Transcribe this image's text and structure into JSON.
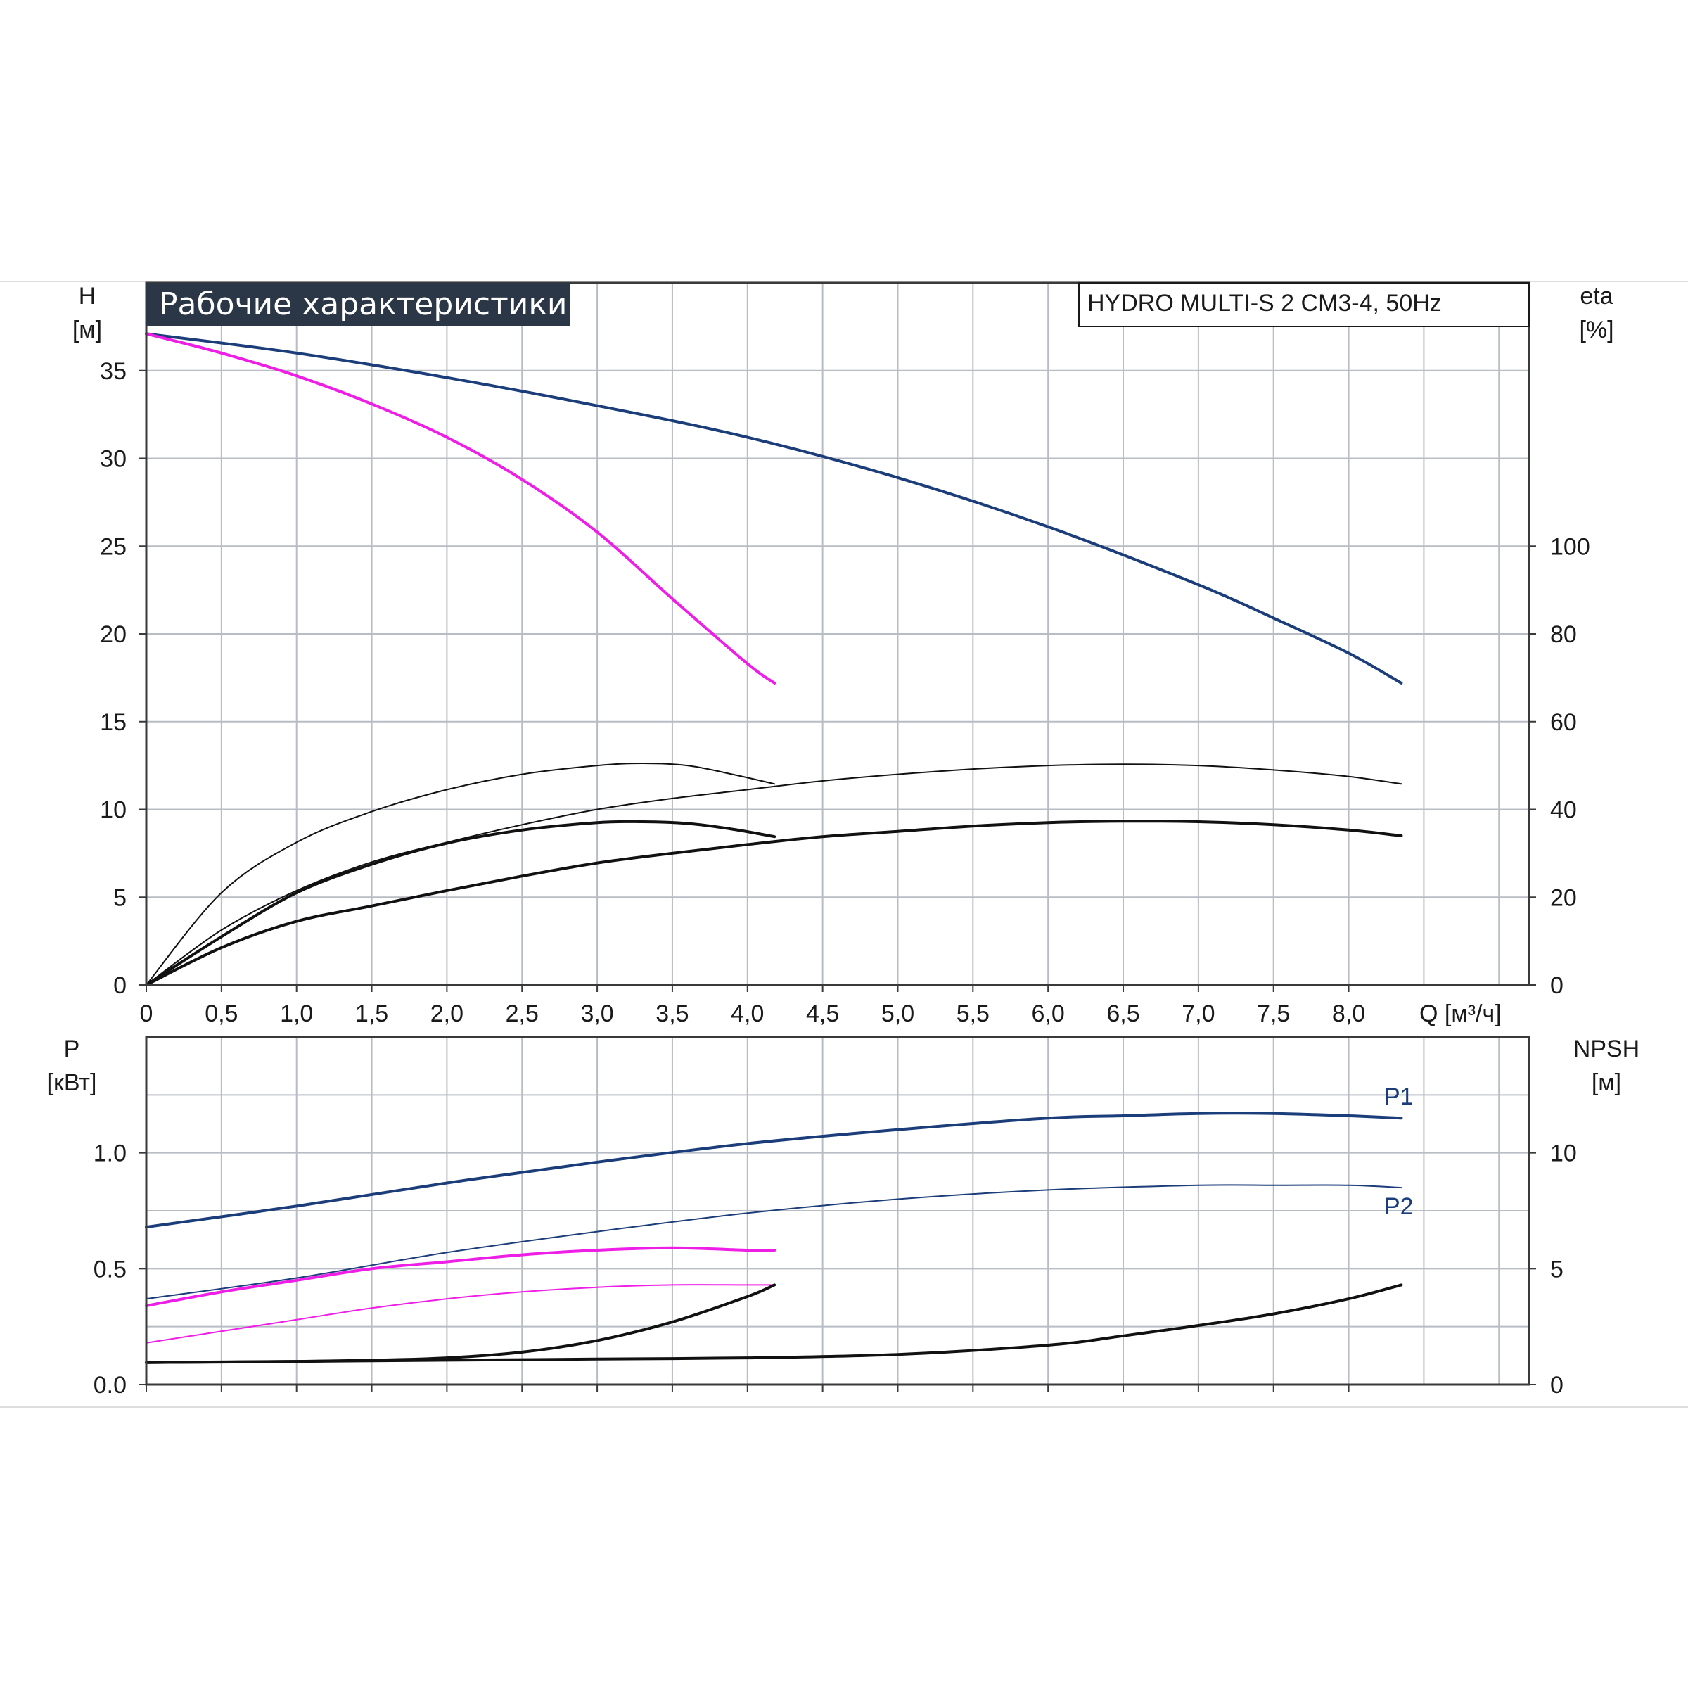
{
  "colors": {
    "blue": "#1b3d7a",
    "magenta": "#ee1ee6",
    "black": "#111111",
    "title_bg": "#2b3646",
    "grid": "#b8bcc4"
  },
  "chart_data": {
    "title": "Рабочие характеристики",
    "model": "HYDRO MULTI-S 2 CM3-4, 50Hz",
    "x_axis": {
      "label": "Q [м³/ч]",
      "range": [
        0,
        9.2
      ],
      "ticks": [
        0,
        0.5,
        1.0,
        1.5,
        2.0,
        2.5,
        3.0,
        3.5,
        4.0,
        4.5,
        5.0,
        5.5,
        6.0,
        6.5,
        7.0,
        7.5,
        8.0
      ],
      "tick_labels": [
        "0",
        "0,5",
        "1,0",
        "1,5",
        "2,0",
        "2,5",
        "3,0",
        "3,5",
        "4,0",
        "4,5",
        "5,0",
        "5,5",
        "6,0",
        "6,5",
        "7,0",
        "7,5",
        "8,0"
      ]
    },
    "top_plot": {
      "type": "line",
      "left_axis": {
        "label_line1": "H",
        "label_line2": "[м]",
        "range": [
          0,
          40
        ],
        "ticks": [
          0,
          5,
          10,
          15,
          20,
          25,
          30,
          35
        ],
        "tick_labels": [
          "0",
          "5",
          "10",
          "15",
          "20",
          "25",
          "30",
          "35"
        ]
      },
      "right_axis": {
        "label_line1": "eta",
        "label_line2": "[%]",
        "range": [
          0,
          160
        ],
        "ticks": [
          0,
          20,
          40,
          60,
          80,
          100
        ],
        "tick_labels": [
          "0",
          "20",
          "40",
          "60",
          "80",
          "100"
        ]
      },
      "grid": true,
      "series": [
        {
          "color": "blue",
          "width": 4,
          "axis": "left",
          "x": [
            0,
            1,
            2,
            3,
            4,
            5,
            6,
            7,
            7.5,
            8,
            8.35
          ],
          "y": [
            37.1,
            36.0,
            34.6,
            33.0,
            31.2,
            28.9,
            26.1,
            22.8,
            20.9,
            18.9,
            17.2
          ]
        },
        {
          "color": "magenta",
          "width": 4,
          "axis": "left",
          "x": [
            0,
            0.5,
            1,
            1.5,
            2,
            2.5,
            3,
            3.5,
            4,
            4.18
          ],
          "y": [
            37.1,
            36.0,
            34.7,
            33.1,
            31.2,
            28.8,
            25.8,
            22.0,
            18.3,
            17.2
          ]
        },
        {
          "color": "black",
          "width": 2,
          "axis": "right",
          "x": [
            0,
            0.5,
            1,
            1.5,
            2,
            2.5,
            3,
            3.5,
            4,
            4.5,
            5,
            5.5,
            6,
            6.5,
            7,
            7.5,
            8,
            8.35
          ],
          "y": [
            0,
            12.5,
            21.5,
            28.0,
            32.5,
            36.5,
            40.0,
            42.5,
            44.5,
            46.5,
            48.0,
            49.2,
            50.0,
            50.3,
            50.0,
            49.0,
            47.5,
            45.8
          ]
        },
        {
          "color": "black",
          "width": 2,
          "axis": "right",
          "x": [
            0,
            0.5,
            1,
            1.5,
            2,
            2.5,
            3,
            3.3,
            3.6,
            3.9,
            4.18
          ],
          "y": [
            0,
            21.0,
            32.5,
            39.5,
            44.5,
            48.0,
            50.0,
            50.5,
            50.0,
            48.0,
            45.8
          ]
        },
        {
          "color": "black",
          "width": 4,
          "axis": "right",
          "x": [
            0,
            0.5,
            1,
            1.5,
            2,
            2.5,
            3,
            3.5,
            4,
            4.5,
            5,
            5.5,
            6,
            6.5,
            7,
            7.5,
            8,
            8.35
          ],
          "y": [
            0,
            8.5,
            14.5,
            18.0,
            21.5,
            24.8,
            27.8,
            30.0,
            32.0,
            33.8,
            35.0,
            36.2,
            37.0,
            37.3,
            37.2,
            36.5,
            35.3,
            34.0
          ]
        },
        {
          "color": "black",
          "width": 4,
          "axis": "right",
          "x": [
            0,
            0.5,
            1,
            1.5,
            2,
            2.5,
            3,
            3.3,
            3.6,
            3.9,
            4.18
          ],
          "y": [
            0,
            11.0,
            21.0,
            27.5,
            32.3,
            35.3,
            37.0,
            37.2,
            36.8,
            35.5,
            33.8
          ]
        }
      ]
    },
    "bottom_plot": {
      "type": "line",
      "left_axis": {
        "label_line1": "P",
        "label_line2": "[кВт]",
        "range": [
          0,
          1.5
        ],
        "ticks": [
          0.0,
          0.5,
          1.0
        ],
        "tick_labels": [
          "0.0",
          "0.5",
          "1.0"
        ]
      },
      "right_axis": {
        "label_line1": "NPSH",
        "label_line2": "[м]",
        "range": [
          0,
          15
        ],
        "ticks": [
          0,
          5,
          10
        ],
        "tick_labels": [
          "0",
          "5",
          "10"
        ]
      },
      "grid": true,
      "series": [
        {
          "name": "P1",
          "color": "blue",
          "width": 4,
          "axis": "left",
          "x": [
            0,
            1,
            2,
            3,
            4,
            5,
            6,
            6.5,
            7,
            7.5,
            8,
            8.35
          ],
          "y": [
            0.68,
            0.77,
            0.87,
            0.96,
            1.04,
            1.1,
            1.15,
            1.16,
            1.17,
            1.17,
            1.16,
            1.15
          ]
        },
        {
          "name": "P2",
          "color": "blue",
          "width": 2,
          "axis": "left",
          "x": [
            0,
            1,
            2,
            3,
            4,
            5,
            6,
            7,
            7.5,
            8,
            8.35
          ],
          "y": [
            0.37,
            0.46,
            0.57,
            0.66,
            0.74,
            0.8,
            0.84,
            0.86,
            0.86,
            0.86,
            0.85
          ]
        },
        {
          "color": "magenta",
          "width": 4,
          "axis": "left",
          "x": [
            0,
            0.5,
            1,
            1.5,
            2,
            2.5,
            3,
            3.5,
            4,
            4.18
          ],
          "y": [
            0.34,
            0.4,
            0.45,
            0.5,
            0.53,
            0.56,
            0.58,
            0.59,
            0.58,
            0.58
          ]
        },
        {
          "color": "magenta",
          "width": 2,
          "axis": "left",
          "x": [
            0,
            0.5,
            1,
            1.5,
            2,
            2.5,
            3,
            3.5,
            4,
            4.18
          ],
          "y": [
            0.18,
            0.23,
            0.28,
            0.33,
            0.37,
            0.4,
            0.42,
            0.43,
            0.43,
            0.43
          ]
        },
        {
          "color": "black",
          "width": 4,
          "axis": "right",
          "x": [
            0,
            1,
            2,
            3,
            4,
            5,
            6,
            6.5,
            7,
            7.5,
            8,
            8.35
          ],
          "y": [
            0.95,
            1.0,
            1.05,
            1.1,
            1.15,
            1.3,
            1.7,
            2.1,
            2.55,
            3.05,
            3.7,
            4.3
          ]
        },
        {
          "color": "black",
          "width": 4,
          "axis": "right",
          "x": [
            0,
            0.5,
            1,
            1.5,
            2,
            2.5,
            3,
            3.5,
            4,
            4.18
          ],
          "y": [
            0.95,
            0.97,
            1.0,
            1.05,
            1.15,
            1.4,
            1.9,
            2.7,
            3.8,
            4.3
          ]
        }
      ]
    }
  }
}
